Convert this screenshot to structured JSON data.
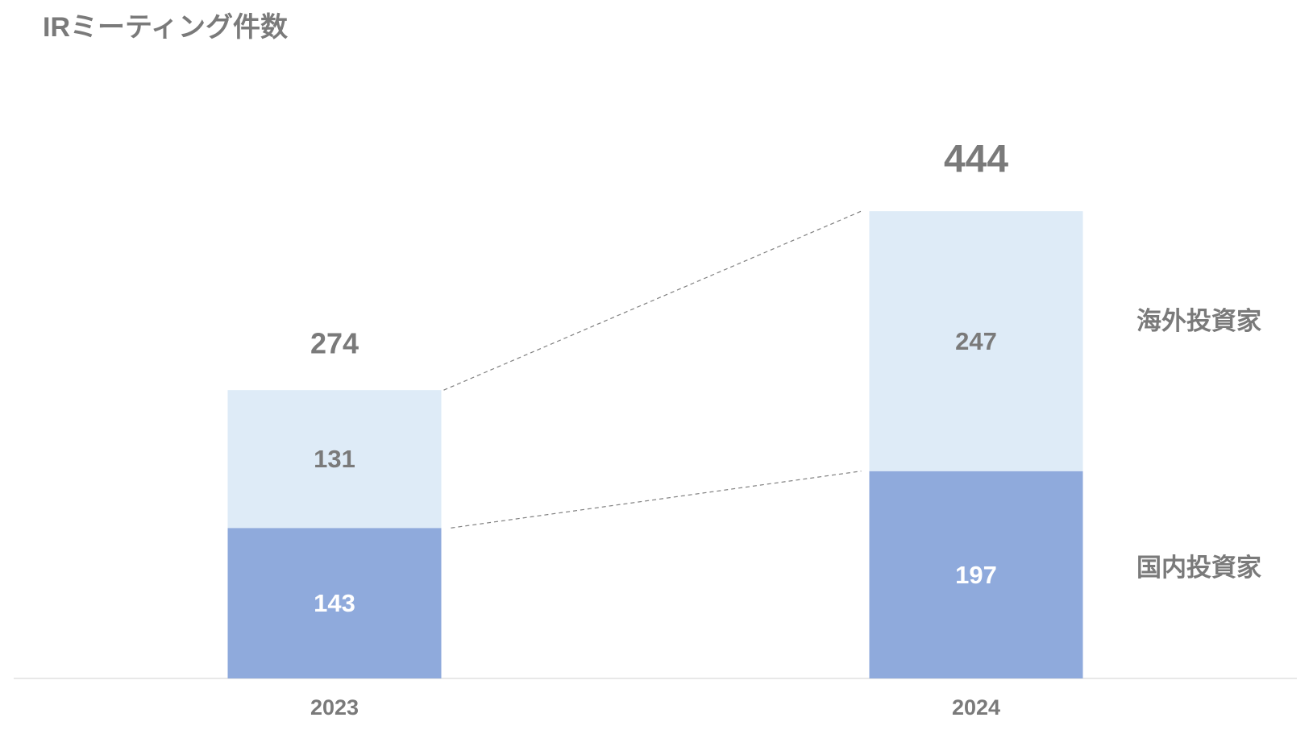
{
  "colors": {
    "text": "#7A7A7A",
    "axis": "#D9D9D9",
    "connector": "#808080"
  },
  "chart_data": {
    "type": "bar",
    "stacked": true,
    "title": "IRミーティング件数",
    "xlabel": "",
    "ylabel": "",
    "categories": [
      "2023",
      "2024"
    ],
    "series": [
      {
        "name": "国内投資家",
        "values": [
          143,
          197
        ],
        "color": "#8FAADC",
        "label_color": "#FFFFFF"
      },
      {
        "name": "海外投資家",
        "values": [
          131,
          247
        ],
        "color": "#DEEBF7",
        "label_color": "#7A7A7A"
      }
    ],
    "totals": [
      274,
      444
    ],
    "grid": false,
    "legend": "right"
  }
}
